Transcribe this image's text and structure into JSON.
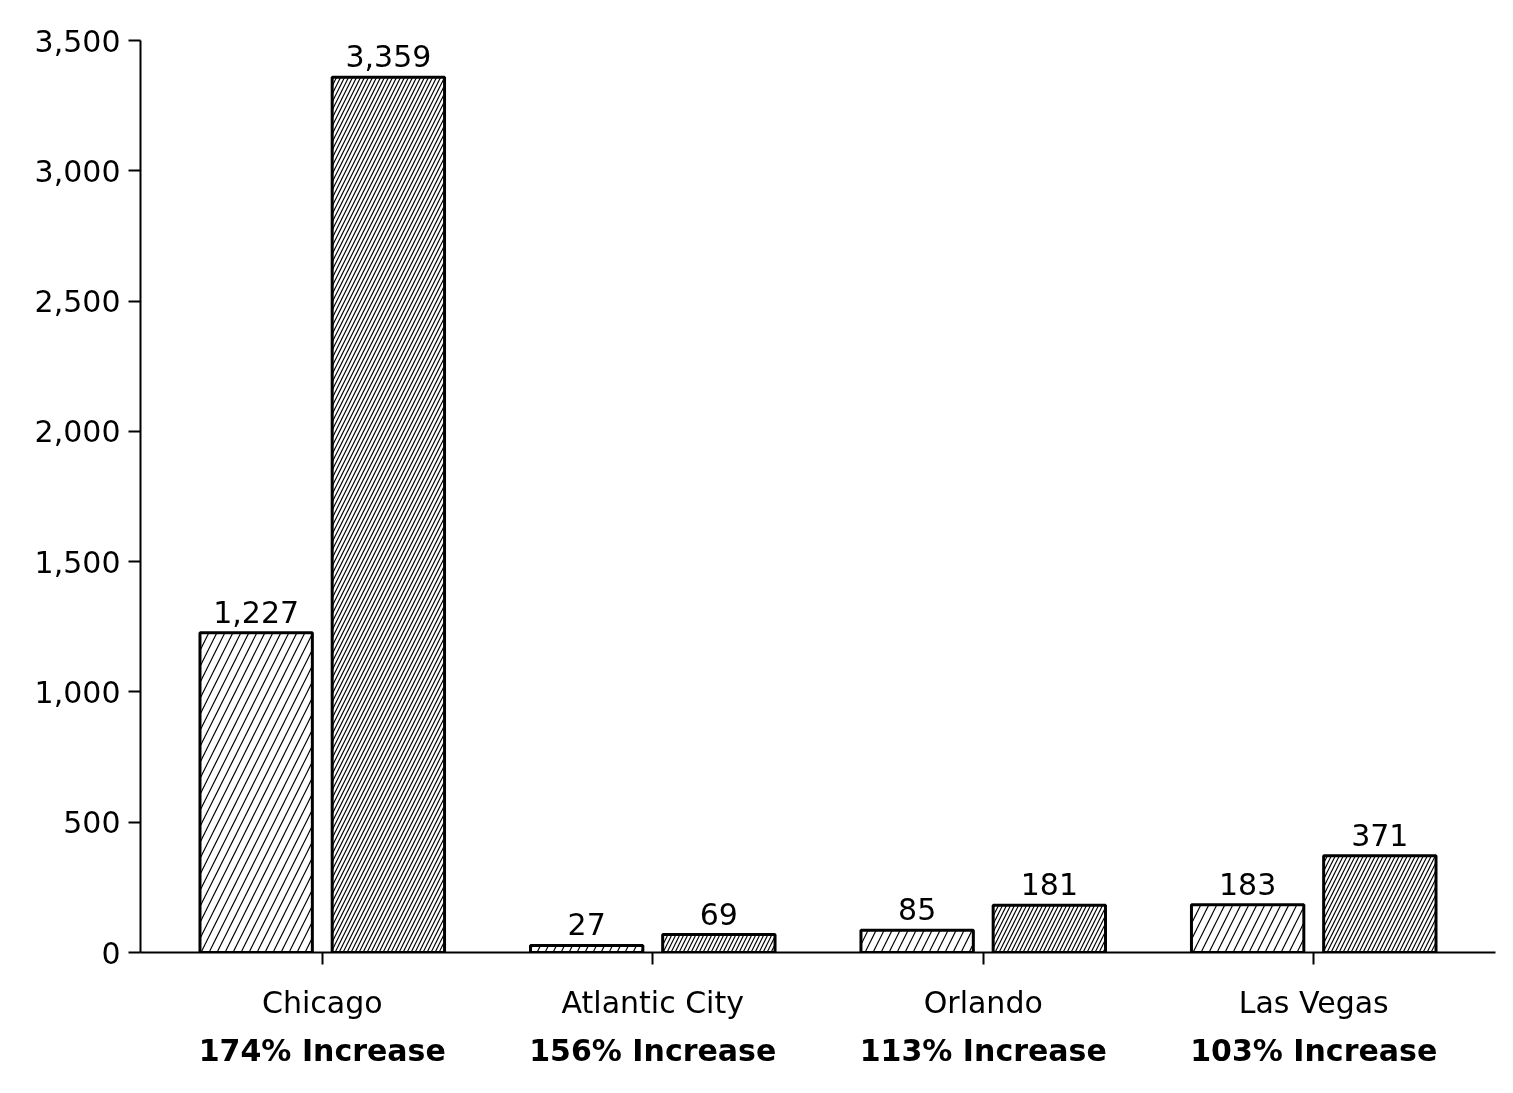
{
  "chart_data": {
    "type": "bar",
    "categories": [
      "Chicago",
      "Atlantic City",
      "Orlando",
      "Las Vegas"
    ],
    "series": [
      {
        "color": "#000000",
        "values": [
          1227,
          27,
          85,
          183
        ],
        "value_labels": [
          "1,227",
          "27",
          "85",
          "183"
        ]
      },
      {
        "color": "#000000",
        "values": [
          3359,
          69,
          181,
          371
        ],
        "value_labels": [
          "3,359",
          "69",
          "181",
          "371"
        ]
      }
    ],
    "ylim": [
      0,
      3500
    ],
    "yticks": [
      0,
      500,
      {
        "value": 1000,
        "label": "1,000"
      },
      {
        "value": 1500,
        "label": "1,500"
      },
      {
        "value": 2000,
        "label": "2,000"
      },
      {
        "value": 2500,
        "label": "2,500"
      },
      {
        "value": 3000,
        "label": "3,000"
      },
      {
        "value": 3500,
        "label": "3,500"
      }
    ],
    "grid": false,
    "annotations": [
      "174% Increase",
      "156% Increase",
      "113% Increase",
      "103% Increase"
    ]
  }
}
